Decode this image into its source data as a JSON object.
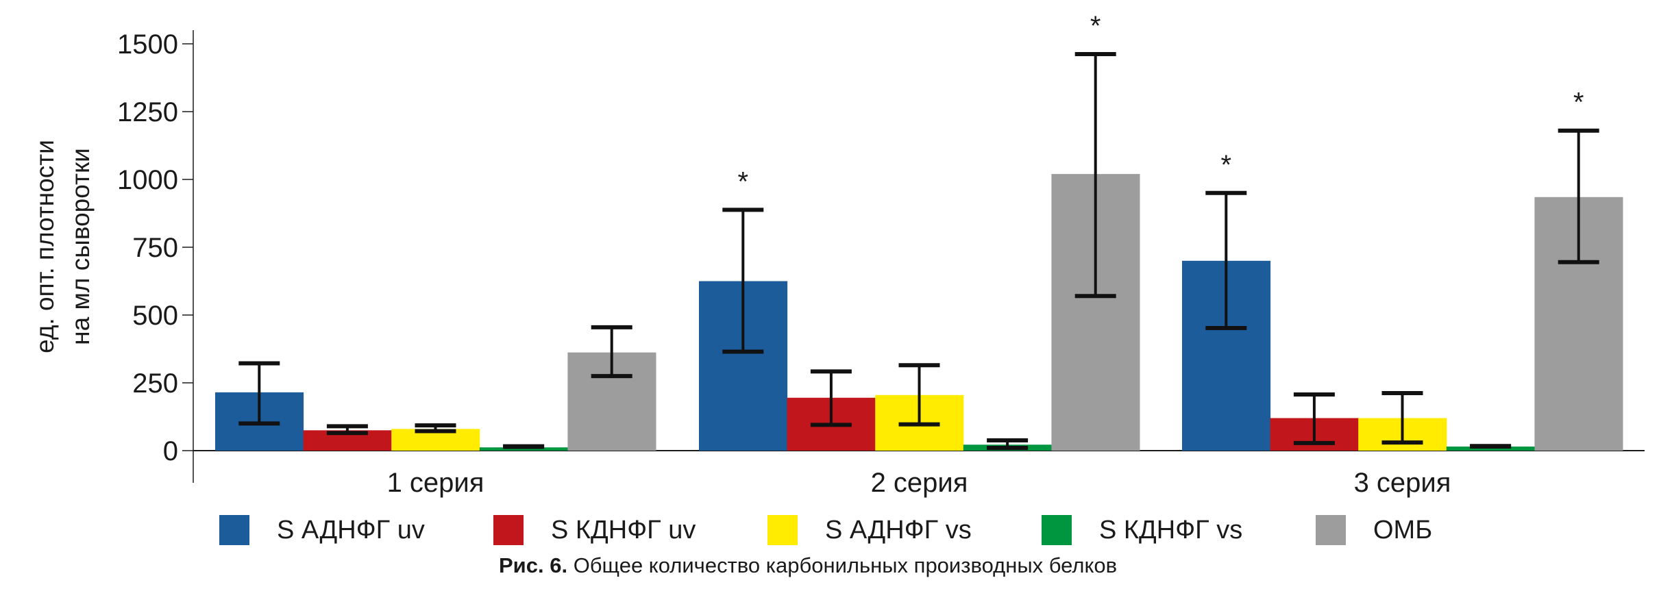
{
  "chart_data": {
    "type": "bar",
    "title": "",
    "ylabel_lines": [
      "ед. опт. плотности",
      "на мл сыворотки"
    ],
    "xlabel": "",
    "ylim": [
      0,
      1500
    ],
    "yticks": [
      0,
      250,
      500,
      750,
      1000,
      1250,
      1500
    ],
    "ytick_labels": [
      "0",
      "250",
      "500",
      "750",
      "1000",
      "1250",
      "1500"
    ],
    "categories": [
      "1 серия",
      "2 серия",
      "3 серия"
    ],
    "series": [
      {
        "name": "S АДНФГ uv",
        "color": "#1c5c9a",
        "values": [
          215,
          625,
          700
        ],
        "err_low": [
          100,
          365,
          452
        ],
        "err_high": [
          322,
          888,
          950
        ],
        "significant": [
          false,
          true,
          true
        ]
      },
      {
        "name": "S КДНФГ uv",
        "color": "#c1161b",
        "values": [
          75,
          195,
          120
        ],
        "err_low": [
          65,
          95,
          28
        ],
        "err_high": [
          90,
          292,
          207
        ],
        "significant": [
          false,
          false,
          false
        ]
      },
      {
        "name": "S АДНФГ vs",
        "color": "#ffec00",
        "values": [
          80,
          205,
          120
        ],
        "err_low": [
          72,
          97,
          30
        ],
        "err_high": [
          93,
          315,
          212
        ],
        "significant": [
          false,
          false,
          false
        ]
      },
      {
        "name": "S КДНФГ vs",
        "color": "#00963f",
        "values": [
          12,
          22,
          15
        ],
        "err_low": [
          14,
          10,
          15
        ],
        "err_high": [
          16,
          38,
          17
        ],
        "significant": [
          false,
          false,
          false
        ]
      },
      {
        "name": "ОМБ",
        "color": "#9d9d9d",
        "values": [
          362,
          1020,
          935
        ],
        "err_low": [
          275,
          570,
          695
        ],
        "err_high": [
          455,
          1462,
          1180
        ],
        "significant": [
          false,
          true,
          true
        ]
      }
    ],
    "significance_marker": "*",
    "legend_position": "bottom",
    "grid": false
  },
  "caption": {
    "label": "Рис. 6.",
    "text": "Общее количество карбонильных производных белков"
  }
}
